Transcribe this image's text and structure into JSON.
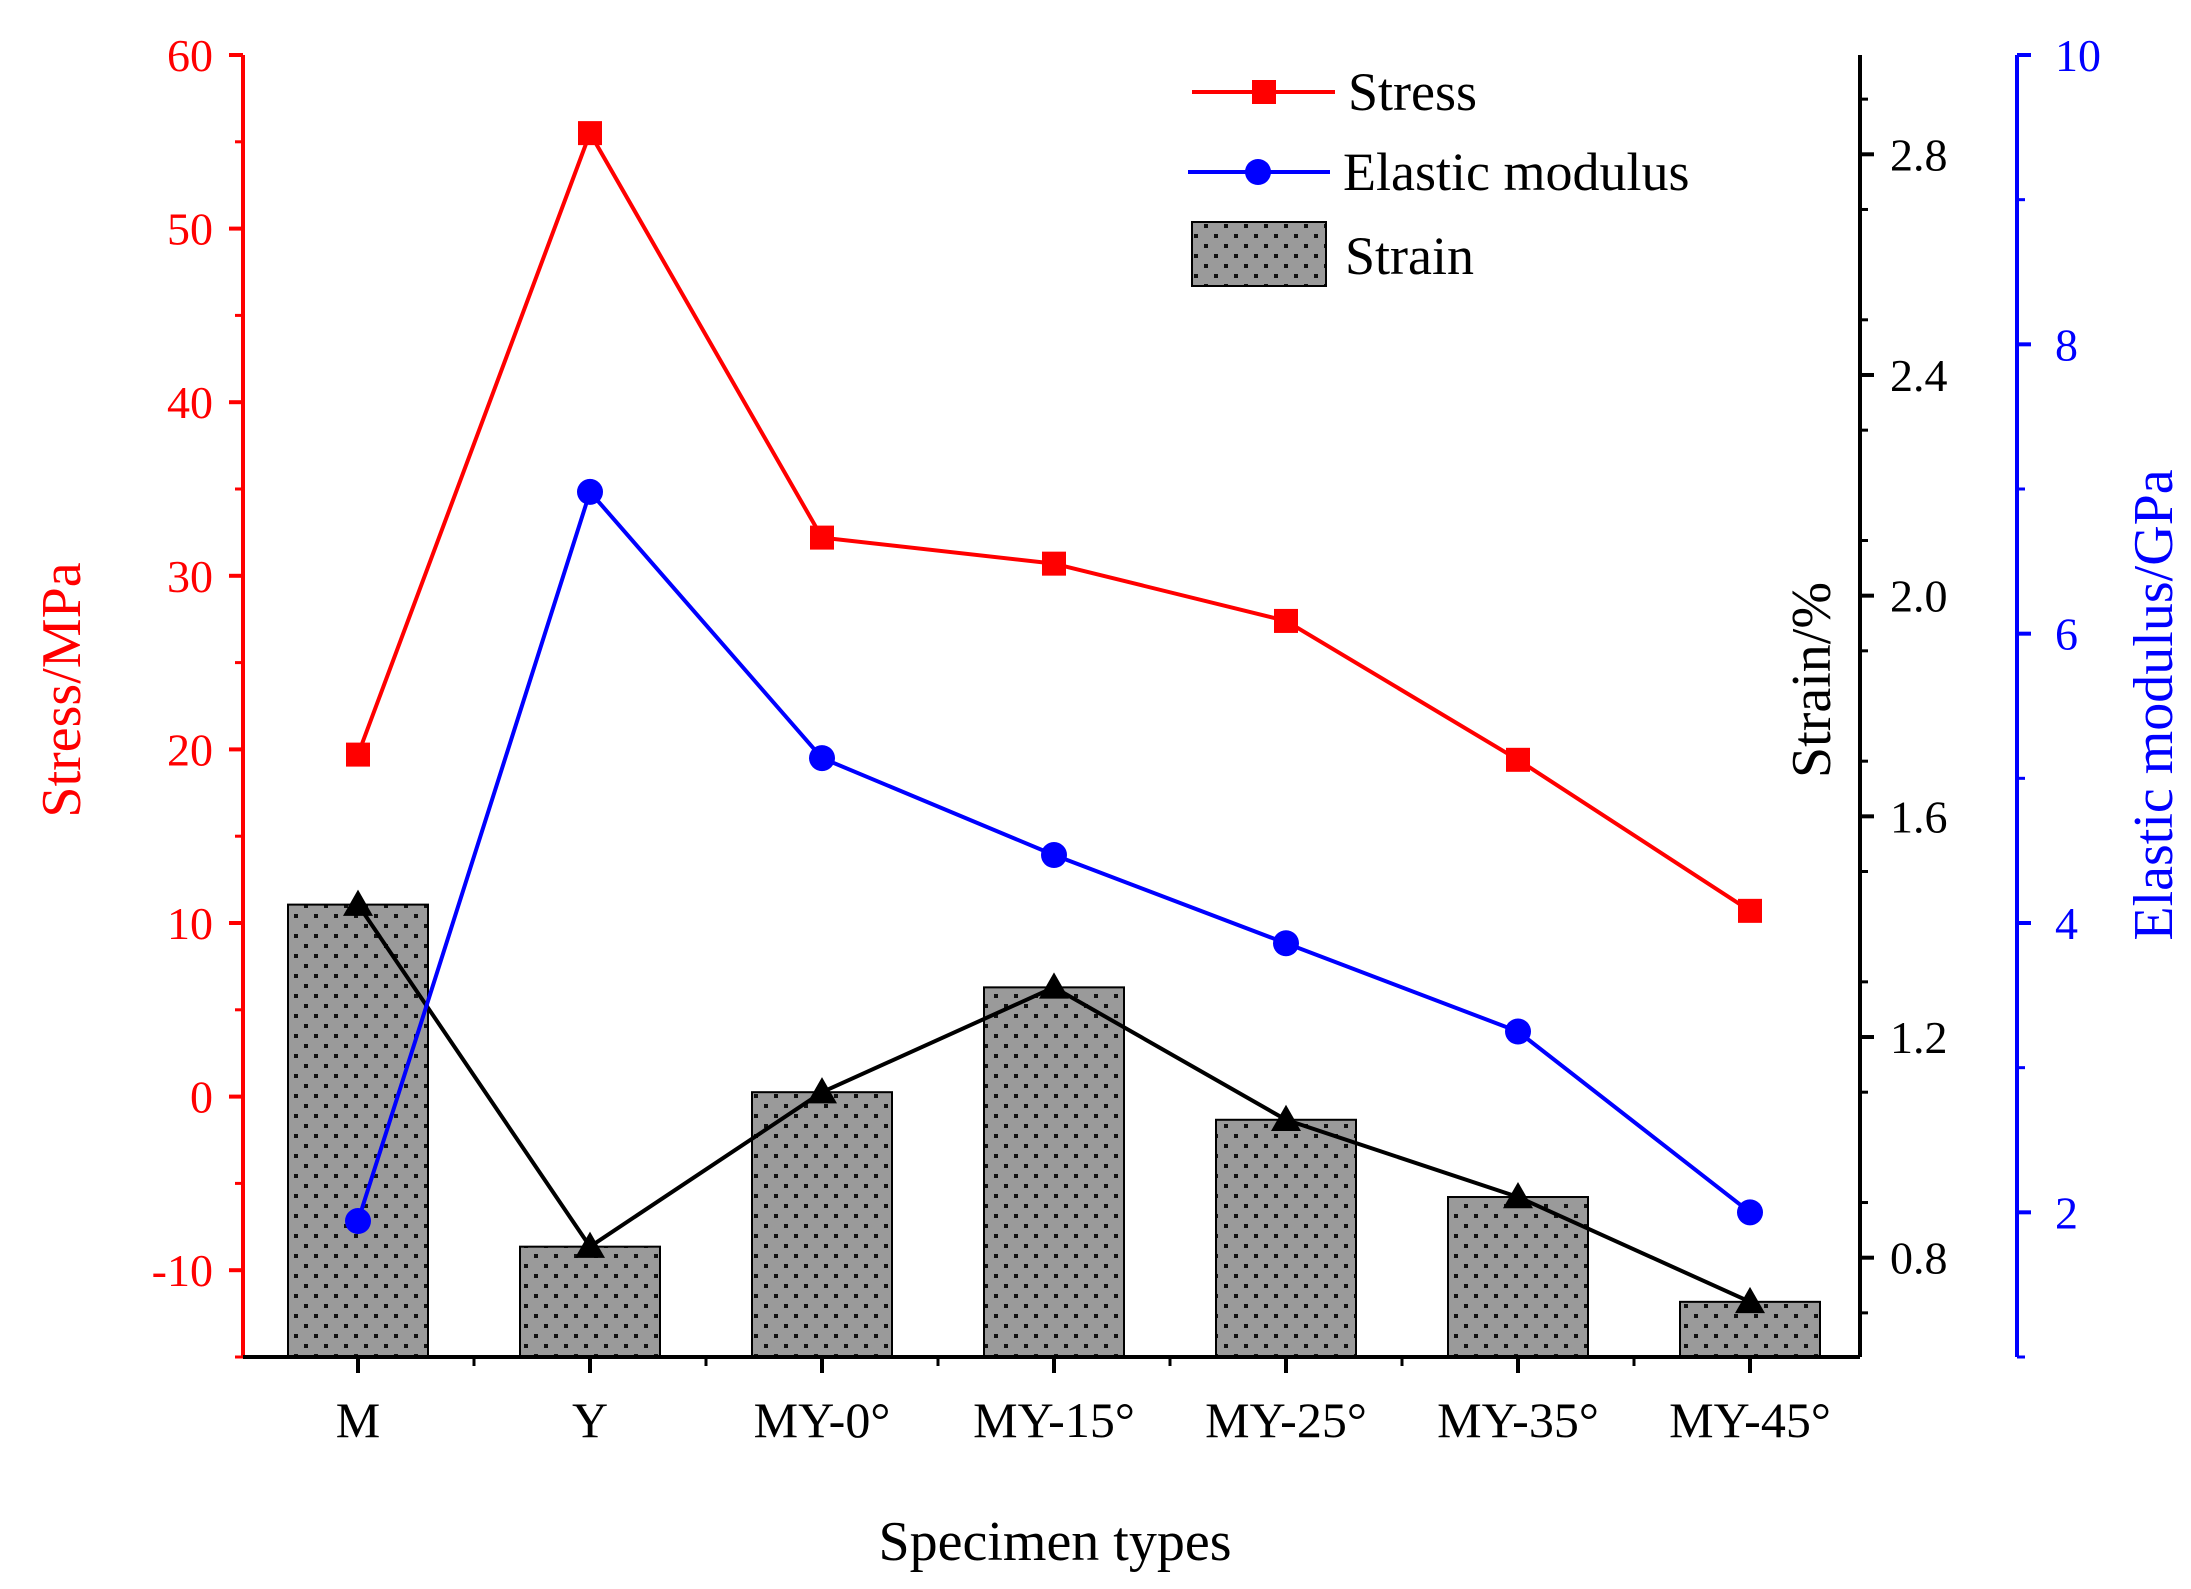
{
  "chart_data": {
    "type": "bar+line",
    "title": "",
    "xlabel": "Specimen types",
    "categories": [
      "M",
      "Y",
      "MY-0°",
      "MY-15°",
      "MY-25°",
      "MY-35°",
      "MY-45°"
    ],
    "axes": {
      "stress": {
        "label": "Stress/MPa",
        "range": [
          -15,
          60
        ],
        "ticks": [
          -10,
          0,
          10,
          20,
          30,
          40,
          50,
          60
        ],
        "color": "#ff0000",
        "position": "left"
      },
      "strain": {
        "label": "Strain/%",
        "range": [
          0.62,
          2.98
        ],
        "ticks": [
          "0.8",
          "1.2",
          "1.6",
          "2.0",
          "2.4",
          "2.8"
        ],
        "color": "#000000",
        "position": "middle-right"
      },
      "modulus": {
        "label": "Elastic modulus/GPa",
        "range": [
          1.0,
          10.0
        ],
        "ticks": [
          "2",
          "4",
          "6",
          "8",
          "10"
        ],
        "color": "#0000ff",
        "position": "right"
      }
    },
    "series": [
      {
        "name": "Stress",
        "type": "line",
        "marker": "square",
        "color": "#ff0000",
        "axis": "stress",
        "values": [
          19.7,
          55.5,
          32.2,
          30.7,
          27.4,
          19.4,
          10.7
        ]
      },
      {
        "name": "Elastic modulus",
        "type": "line",
        "marker": "circle",
        "color": "#0000ff",
        "axis": "modulus",
        "values": [
          1.94,
          6.98,
          5.14,
          4.47,
          3.86,
          3.25,
          2.0
        ]
      },
      {
        "name": "Strain",
        "type": "bar",
        "pattern": "dotted",
        "color": "#999999",
        "axis": "strain",
        "values": [
          1.44,
          0.82,
          1.1,
          1.29,
          1.05,
          0.91,
          0.72
        ],
        "overlay_line": {
          "marker": "triangle",
          "color": "#000000"
        }
      }
    ],
    "legend": {
      "position": "top-right",
      "entries": [
        "Stress",
        "Elastic modulus",
        "Strain"
      ]
    }
  }
}
